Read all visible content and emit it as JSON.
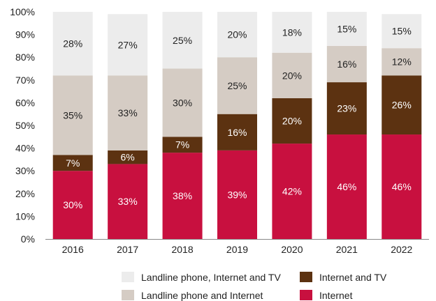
{
  "chart_data": {
    "type": "bar",
    "stacked": true,
    "categories": [
      "2016",
      "2017",
      "2018",
      "2019",
      "2020",
      "2021",
      "2022"
    ],
    "series": [
      {
        "name": "Internet",
        "color": "#c8103f",
        "label_color": "#ffffff",
        "values": [
          30,
          33,
          38,
          39,
          42,
          46,
          46
        ],
        "labels": [
          "30%",
          "33%",
          "38%",
          "39%",
          "42%",
          "46%",
          "46%"
        ]
      },
      {
        "name": "Internet and TV",
        "color": "#5c3211",
        "label_color": "#ffffff",
        "values": [
          7,
          6,
          7,
          16,
          20,
          23,
          26
        ],
        "labels": [
          "7%",
          "6%",
          "7%",
          "16%",
          "20%",
          "23%",
          "26%"
        ]
      },
      {
        "name": "Landline phone and Internet",
        "color": "#d5ccc4",
        "label_color": "#222222",
        "values": [
          35,
          33,
          30,
          25,
          20,
          16,
          12
        ],
        "labels": [
          "35%",
          "33%",
          "30%",
          "25%",
          "20%",
          "16%",
          "12%"
        ]
      },
      {
        "name": "Landline phone, Internet and TV",
        "color": "#ececec",
        "label_color": "#222222",
        "values": [
          28,
          27,
          25,
          20,
          18,
          15,
          15
        ],
        "labels": [
          "28%",
          "27%",
          "25%",
          "20%",
          "18%",
          "15%",
          "15%"
        ]
      }
    ],
    "ylim": [
      0,
      100
    ],
    "yticks": [
      0,
      10,
      20,
      30,
      40,
      50,
      60,
      70,
      80,
      90,
      100
    ],
    "ytick_labels": [
      "0%",
      "10%",
      "20%",
      "30%",
      "40%",
      "50%",
      "60%",
      "70%",
      "80%",
      "90%",
      "100%"
    ],
    "title": "",
    "xlabel": "",
    "ylabel": "",
    "grid": false,
    "legend_position": "bottom",
    "legend_order": [
      "Landline phone, Internet and TV",
      "Internet and TV",
      "Landline phone and Internet",
      "Internet"
    ]
  }
}
